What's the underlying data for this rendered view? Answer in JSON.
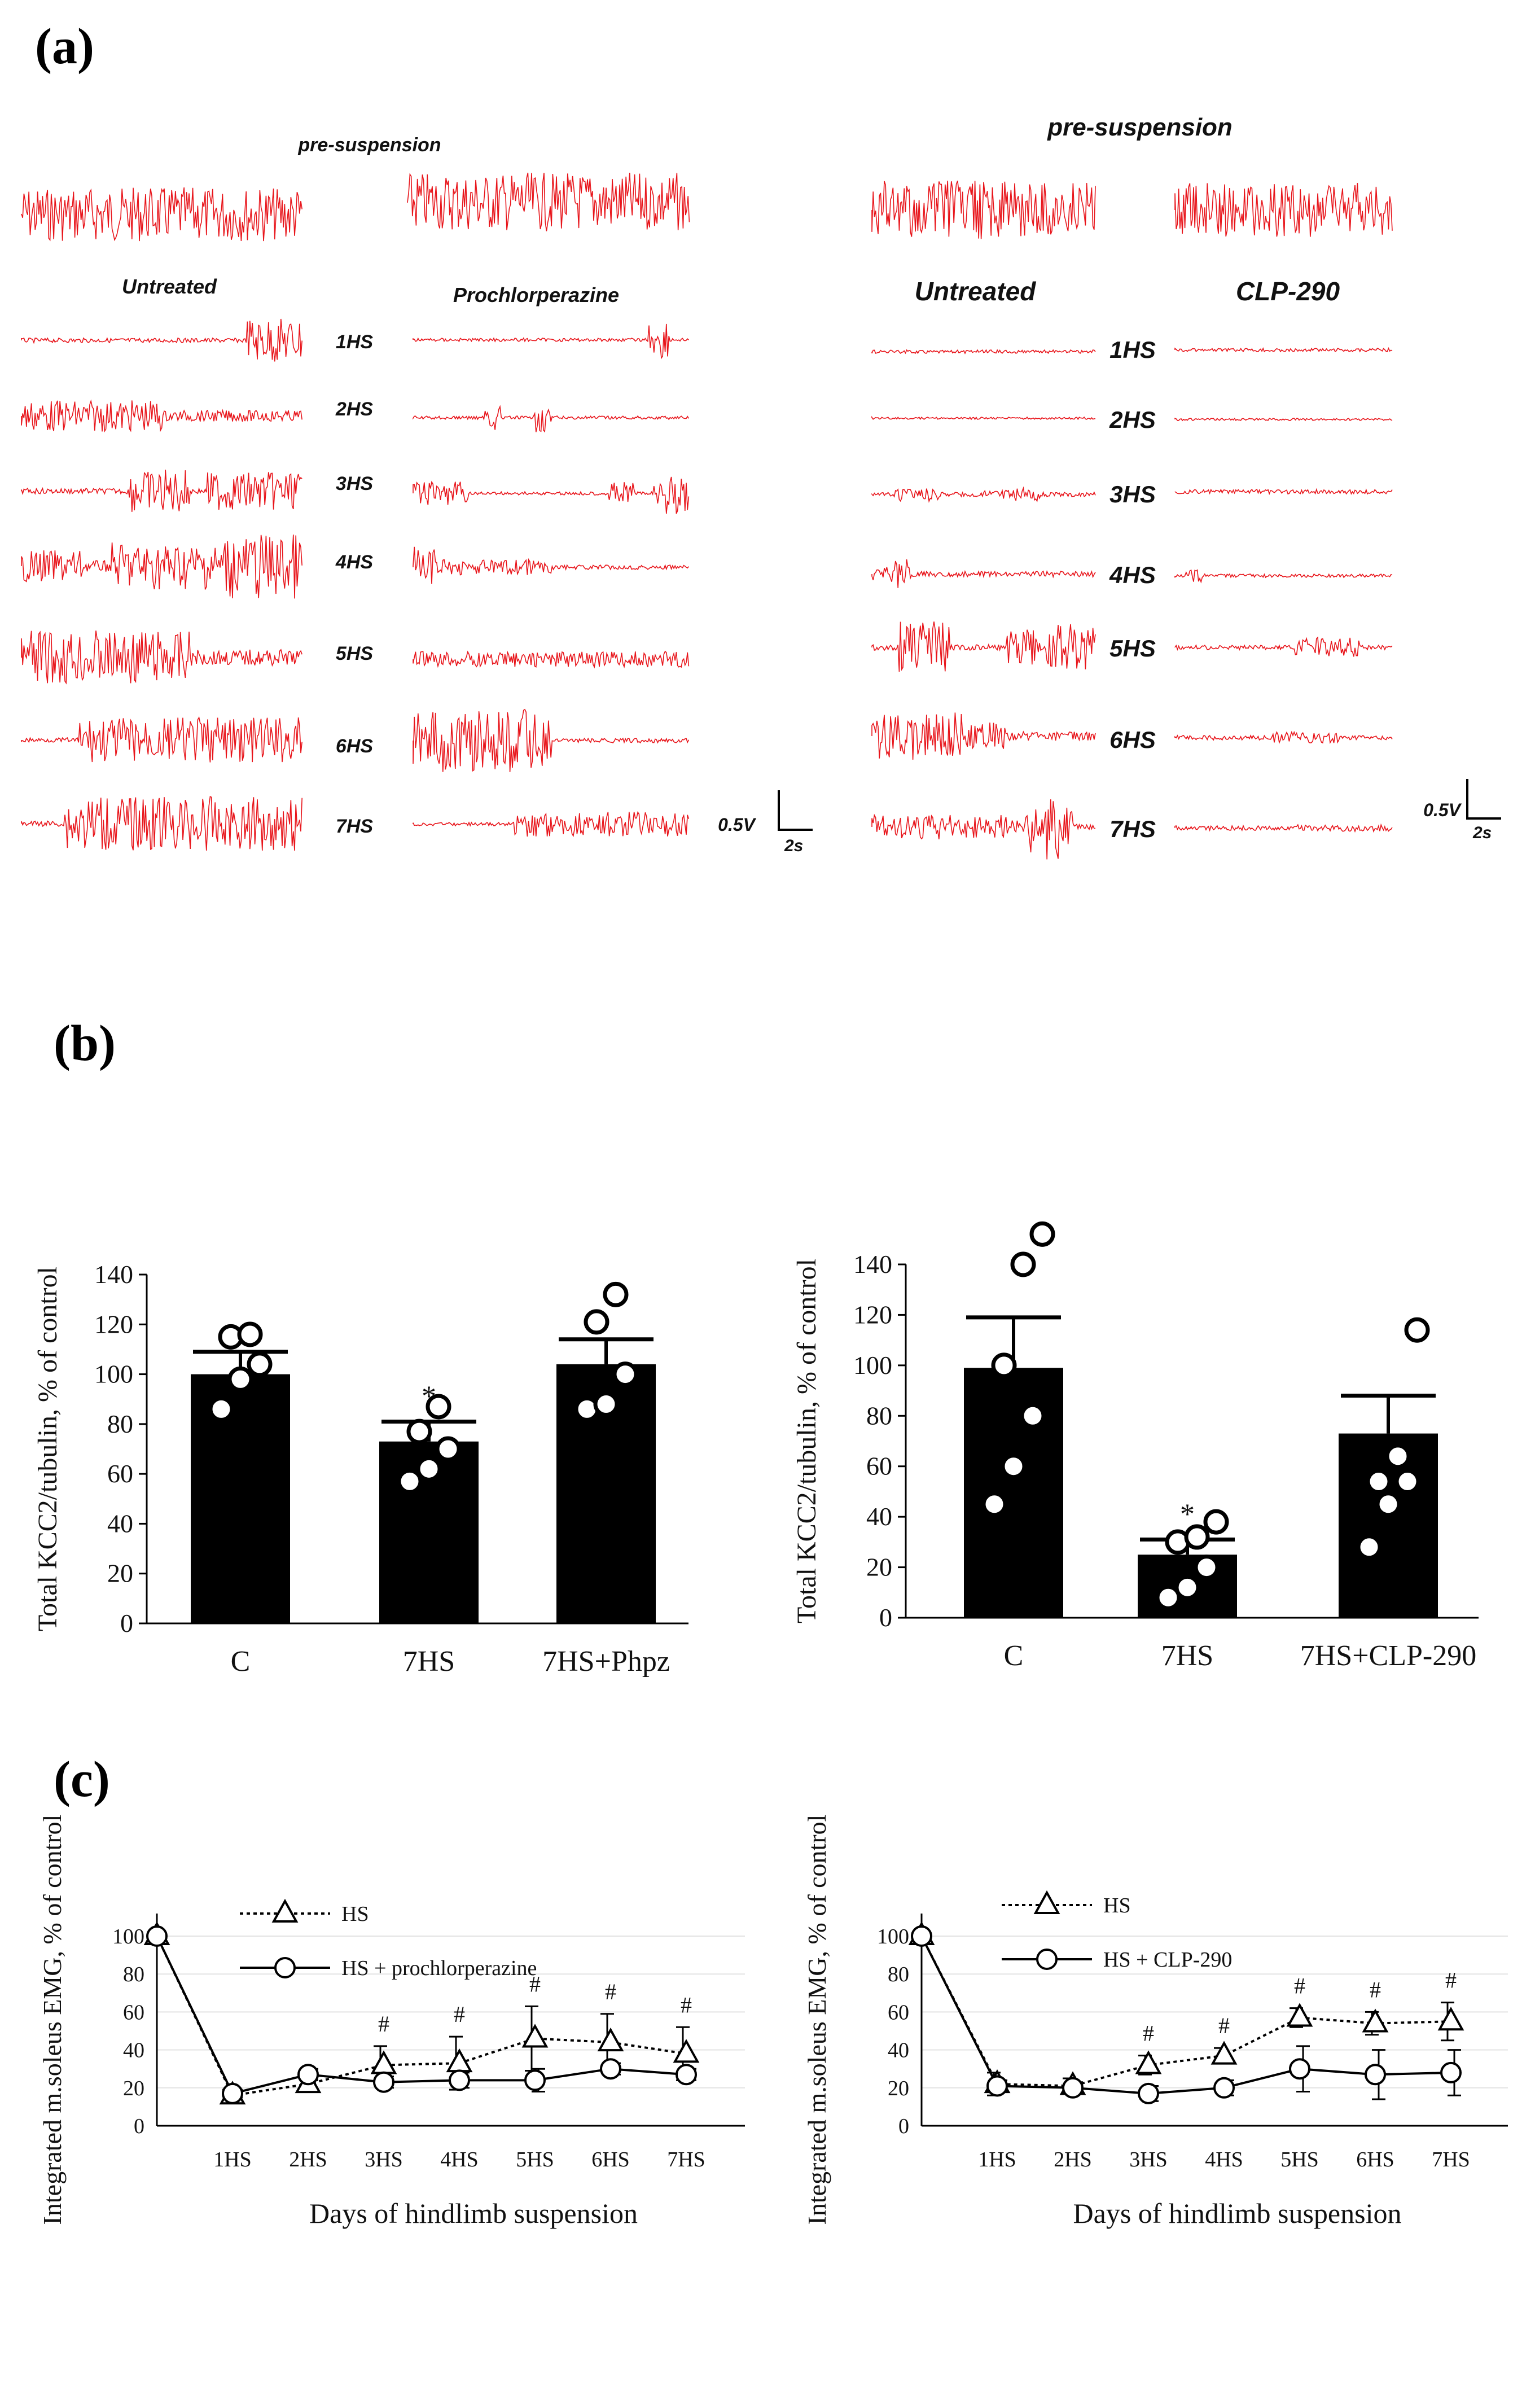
{
  "panel_labels": [
    "(a)",
    "(b)",
    "(c)"
  ],
  "emg": {
    "color": "#e8151b",
    "left": {
      "pre_title": "pre-suspension",
      "group1": "Untreated",
      "group2": "Prochlorperazine",
      "days": [
        "1HS",
        "2HS",
        "3HS",
        "4HS",
        "5HS",
        "6HS",
        "7HS"
      ],
      "scale_v": "0.5V",
      "scale_t": "2s"
    },
    "right": {
      "pre_title": "pre-suspension",
      "group1": "Untreated",
      "group2": "CLP-290",
      "days": [
        "1HS",
        "2HS",
        "3HS",
        "4HS",
        "5HS",
        "6HS",
        "7HS"
      ],
      "scale_v": "0.5V",
      "scale_t": "2s"
    }
  },
  "chart_data": [
    {
      "type": "bar",
      "panel": "b-left",
      "ylabel": "Total KCC2/tubulin, % of control",
      "ylim": [
        0,
        140
      ],
      "yticks": [
        0,
        20,
        40,
        60,
        80,
        100,
        120,
        140
      ],
      "categories": [
        "C",
        "7HS",
        "7HS+Phpz"
      ],
      "values": [
        100,
        73,
        104
      ],
      "errors": [
        9,
        8,
        10
      ],
      "points": [
        [
          86,
          98,
          104,
          115,
          116
        ],
        [
          57,
          62,
          70,
          77,
          87
        ],
        [
          86,
          88,
          100,
          121,
          132
        ]
      ],
      "significance": [
        "",
        "*",
        ""
      ]
    },
    {
      "type": "bar",
      "panel": "b-right",
      "ylabel": "Total KCC2/tubulin, % of control",
      "ylim": [
        0,
        140
      ],
      "yticks": [
        0,
        20,
        40,
        60,
        80,
        100,
        120,
        140
      ],
      "categories": [
        "C",
        "7HS",
        "7HS+CLP-290"
      ],
      "values": [
        99,
        25,
        73
      ],
      "errors": [
        20,
        6,
        15
      ],
      "points": [
        [
          45,
          60,
          80,
          100,
          140,
          152
        ],
        [
          8,
          12,
          20,
          30,
          32,
          38
        ],
        [
          28,
          45,
          54,
          54,
          64,
          114
        ]
      ],
      "significance": [
        "",
        "*",
        ""
      ]
    },
    {
      "type": "line",
      "panel": "c-left",
      "ylabel": "Integrated m.soleus EMG, % of control",
      "xlabel": "Days of hindlimb suspension",
      "ylim": [
        0,
        100
      ],
      "yticks": [
        0,
        20,
        40,
        60,
        80,
        100
      ],
      "categories": [
        "",
        "1HS",
        "2HS",
        "3HS",
        "4HS",
        "5HS",
        "6HS",
        "7HS"
      ],
      "series": [
        {
          "name": "HS",
          "marker": "triangle",
          "dash": "dotted",
          "values": [
            100,
            16,
            22,
            32,
            33,
            46,
            44,
            38
          ],
          "errors": [
            0,
            3,
            4,
            10,
            14,
            17,
            15,
            14
          ]
        },
        {
          "name": "HS + prochlorperazine",
          "marker": "circle",
          "dash": "solid",
          "values": [
            100,
            17,
            27,
            23,
            24,
            24,
            30,
            27
          ],
          "errors": [
            0,
            2,
            3,
            3,
            4,
            6,
            3,
            3
          ]
        }
      ],
      "annotations": [
        "",
        "",
        "",
        "#",
        "#",
        "#",
        "#",
        "#"
      ]
    },
    {
      "type": "line",
      "panel": "c-right",
      "ylabel": "Integrated m.soleus EMG, % of control",
      "xlabel": "Days of hindlimb suspension",
      "ylim": [
        0,
        100
      ],
      "yticks": [
        0,
        20,
        40,
        60,
        80,
        100
      ],
      "categories": [
        "",
        "1HS",
        "2HS",
        "3HS",
        "4HS",
        "5HS",
        "6HS",
        "7HS"
      ],
      "series": [
        {
          "name": "HS",
          "marker": "triangle",
          "dash": "dotted",
          "values": [
            100,
            22,
            21,
            32,
            37,
            57,
            54,
            55
          ],
          "errors": [
            0,
            6,
            4,
            5,
            4,
            5,
            6,
            10
          ]
        },
        {
          "name": "HS + CLP-290",
          "marker": "circle",
          "dash": "solid",
          "values": [
            100,
            21,
            20,
            17,
            20,
            30,
            27,
            28
          ],
          "errors": [
            0,
            3,
            3,
            4,
            4,
            12,
            13,
            12
          ]
        }
      ],
      "annotations": [
        "",
        "",
        "",
        "#",
        "#",
        "#",
        "#",
        "#"
      ]
    }
  ]
}
